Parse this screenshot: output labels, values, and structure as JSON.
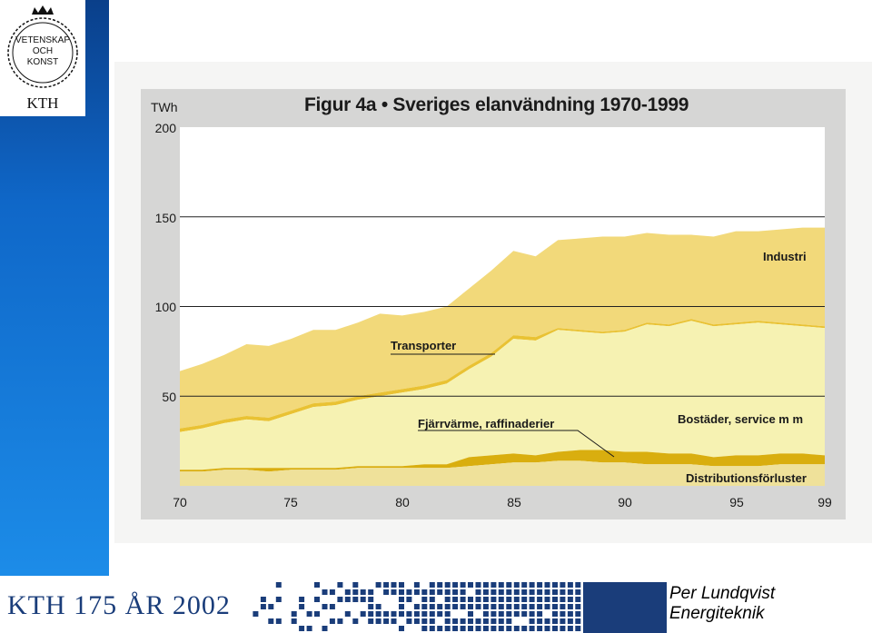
{
  "logo": {
    "line1": "VETENSKAP",
    "line2": "OCH",
    "line3": "KONST",
    "kth": "KTH"
  },
  "footer": {
    "anniversary": "KTH 175 ÅR 2002",
    "author_name": "Per Lundqvist",
    "author_dept": "Energiteknik"
  },
  "colors": {
    "sidebar_blue": "#0f67c8",
    "navy": "#1a3d7a",
    "industri": "#f2d97a",
    "transport_line": "#e9c233",
    "bostader": "#f6f2b2",
    "fjarrvarme": "#d9ae0f",
    "distribution": "#efe19a"
  },
  "chart_data": {
    "type": "area",
    "title": "Figur 4a • Sveriges elanvändning 1970-1999",
    "ylabel": "TWh",
    "xlabel": "",
    "xlim": [
      1970,
      1999
    ],
    "ylim": [
      0,
      200
    ],
    "grid": "horizontal",
    "xticks": [
      70,
      75,
      80,
      85,
      90,
      95,
      99
    ],
    "yticks": [
      50,
      100,
      150,
      200
    ],
    "x": [
      1970,
      1971,
      1972,
      1973,
      1974,
      1975,
      1976,
      1977,
      1978,
      1979,
      1980,
      1981,
      1982,
      1983,
      1984,
      1985,
      1986,
      1987,
      1988,
      1989,
      1990,
      1991,
      1992,
      1993,
      1994,
      1995,
      1996,
      1997,
      1998,
      1999
    ],
    "series": [
      {
        "name": "Distributionsförluster",
        "role": "cumulative_top",
        "values": [
          8,
          8,
          9,
          9,
          8,
          9,
          9,
          9,
          10,
          10,
          10,
          10,
          10,
          11,
          12,
          13,
          13,
          14,
          14,
          13,
          13,
          12,
          12,
          12,
          11,
          11,
          11,
          12,
          12,
          12
        ]
      },
      {
        "name": "Fjärrvärme, raffinaderier",
        "role": "cumulative_top",
        "values": [
          9,
          9,
          10,
          10,
          10,
          10,
          10,
          10,
          11,
          11,
          11,
          12,
          12,
          16,
          17,
          18,
          17,
          19,
          20,
          20,
          19,
          19,
          18,
          18,
          16,
          17,
          17,
          18,
          18,
          17
        ]
      },
      {
        "name": "Bostäder, service m m",
        "role": "cumulative_top",
        "values": [
          30,
          32,
          35,
          37,
          36,
          40,
          44,
          45,
          48,
          50,
          52,
          54,
          57,
          65,
          72,
          82,
          81,
          87,
          86,
          85,
          86,
          90,
          89,
          92,
          89,
          90,
          91,
          90,
          89,
          88
        ]
      },
      {
        "name": "Transporter",
        "role": "cumulative_top",
        "values": [
          32,
          34,
          37,
          39,
          38,
          42,
          46,
          47,
          50,
          52,
          54,
          56,
          59,
          67,
          74,
          84,
          83,
          88,
          87,
          86,
          87,
          91,
          90,
          93,
          90,
          91,
          92,
          91,
          90,
          89
        ]
      },
      {
        "name": "Industri",
        "role": "cumulative_top",
        "values": [
          64,
          68,
          73,
          79,
          78,
          82,
          87,
          87,
          91,
          96,
          95,
          97,
          100,
          110,
          120,
          131,
          128,
          137,
          138,
          139,
          139,
          141,
          140,
          140,
          139,
          142,
          142,
          143,
          144,
          144
        ]
      }
    ],
    "annotations": [
      "Industri",
      "Transporter",
      "Fjärrvärme, raffinaderier",
      "Bostäder, service m m",
      "Distributionsförluster"
    ]
  }
}
